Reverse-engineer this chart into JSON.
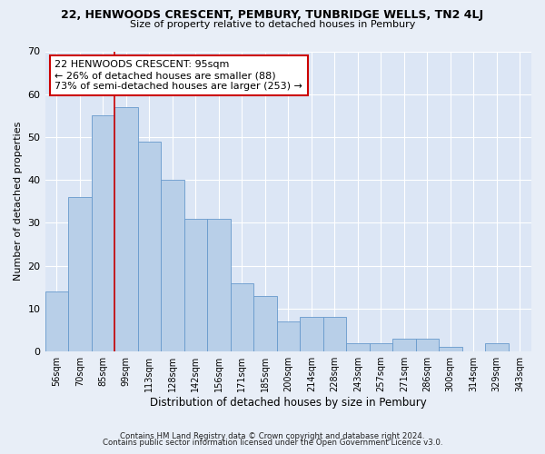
{
  "title": "22, HENWOODS CRESCENT, PEMBURY, TUNBRIDGE WELLS, TN2 4LJ",
  "subtitle": "Size of property relative to detached houses in Pembury",
  "xlabel": "Distribution of detached houses by size in Pembury",
  "ylabel": "Number of detached properties",
  "categories": [
    "56sqm",
    "70sqm",
    "85sqm",
    "99sqm",
    "113sqm",
    "128sqm",
    "142sqm",
    "156sqm",
    "171sqm",
    "185sqm",
    "200sqm",
    "214sqm",
    "228sqm",
    "243sqm",
    "257sqm",
    "271sqm",
    "286sqm",
    "300sqm",
    "314sqm",
    "329sqm",
    "343sqm"
  ],
  "values": [
    14,
    36,
    55,
    57,
    49,
    40,
    31,
    31,
    16,
    13,
    7,
    8,
    8,
    2,
    2,
    3,
    3,
    1,
    0,
    2,
    0
  ],
  "bar_color": "#b8cfe8",
  "bar_edge_color": "#6699cc",
  "background_color": "#dce6f5",
  "grid_color": "#ffffff",
  "annotation_text": "22 HENWOODS CRESCENT: 95sqm\n← 26% of detached houses are smaller (88)\n73% of semi-detached houses are larger (253) →",
  "annotation_box_color": "#ffffff",
  "annotation_box_edge": "#cc0000",
  "vline_color": "#cc0000",
  "footnote1": "Contains HM Land Registry data © Crown copyright and database right 2024.",
  "footnote2": "Contains public sector information licensed under the Open Government Licence v3.0.",
  "ylim": [
    0,
    70
  ],
  "yticks": [
    0,
    10,
    20,
    30,
    40,
    50,
    60,
    70
  ],
  "fig_bg": "#e8eef7"
}
